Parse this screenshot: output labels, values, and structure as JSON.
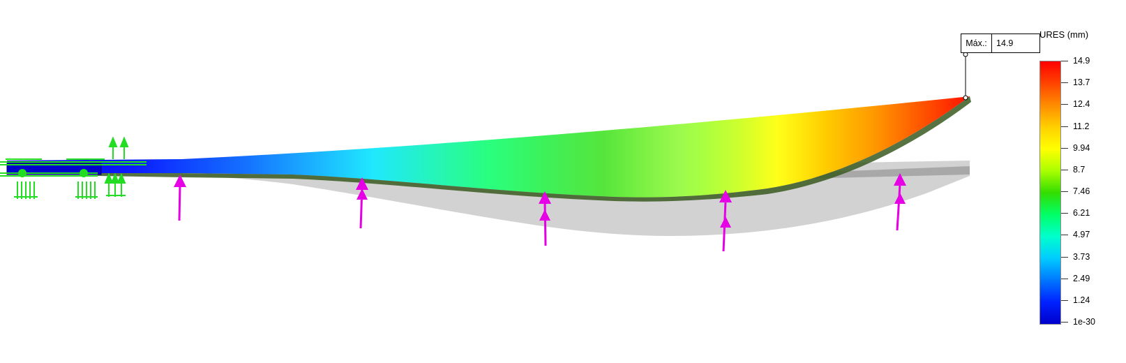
{
  "legend": {
    "title": "URES (mm)",
    "ticks": [
      "14.9",
      "13.7",
      "12.4",
      "11.2",
      "9.94",
      "8.7",
      "7.46",
      "6.21",
      "4.97",
      "3.73",
      "2.49",
      "1.24",
      "1e-30"
    ],
    "colorscale": [
      "#ff0000",
      "#ff4400",
      "#ff8c00",
      "#ffd000",
      "#ffff00",
      "#aaff00",
      "#33dd00",
      "#00ff66",
      "#00ffcc",
      "#00ccff",
      "#0077ff",
      "#0022ff",
      "#0000cc"
    ]
  },
  "max_marker": {
    "label": "Máx.:",
    "value": "14.9"
  },
  "colors": {
    "load_arrow": "#e600e6",
    "fixture": "#22dd22",
    "shadow": "#cfcfcf",
    "edge": "#2e5a1e"
  }
}
